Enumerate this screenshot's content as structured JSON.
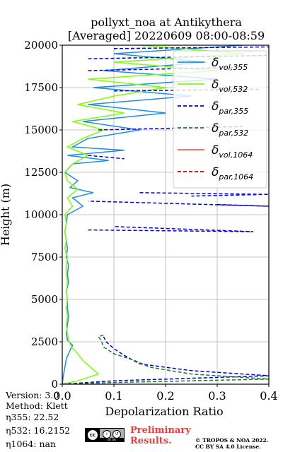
{
  "figure": {
    "title_line1": "pollyxt_noa at Antikythera",
    "title_line2": "[Averaged] 20220609 08:00-08:59"
  },
  "info": {
    "version": "Version: 3.0",
    "method": "Method: Klett",
    "eta355": "η355:  22.52",
    "eta532": "η532: 16.2152",
    "eta1064": "η1064:    nan"
  },
  "footer": {
    "preliminary_line1": "Preliminary",
    "preliminary_line2": "Results.",
    "copyright_line1": "© TROPOS & NOA 2022.",
    "copyright_line2": "CC BY SA 4.0 License.",
    "license_badge": "cc by sa"
  },
  "chart_data": {
    "type": "line",
    "title": "pollyxt_noa at Antikythera [Averaged] 20220609 08:00-08:59",
    "xlabel": "Depolarization Ratio",
    "ylabel": "Height (m)",
    "xlim": [
      0.0,
      0.4
    ],
    "ylim": [
      0,
      20000
    ],
    "xticks": [
      "0.0",
      "0.1",
      "0.2",
      "0.3",
      "0.4"
    ],
    "yticks": [
      "0",
      "2500",
      "5000",
      "7500",
      "10000",
      "12500",
      "15000",
      "17500",
      "20000"
    ],
    "grid": true,
    "legend_position": "top-right",
    "series": [
      {
        "name": "δvol,355",
        "color": "#1f8ce6",
        "style": "solid",
        "points": [
          [
            0.0,
            0
          ],
          [
            0.002,
            500
          ],
          [
            0.005,
            1000
          ],
          [
            0.008,
            1500
          ],
          [
            0.015,
            2000
          ],
          [
            0.02,
            2300
          ],
          [
            0.01,
            2600
          ],
          [
            0.008,
            3000
          ],
          [
            0.01,
            3500
          ],
          [
            0.012,
            4000
          ],
          [
            0.01,
            4500
          ],
          [
            0.01,
            5000
          ],
          [
            0.008,
            5500
          ],
          [
            0.012,
            6000
          ],
          [
            0.01,
            6500
          ],
          [
            0.012,
            7000
          ],
          [
            0.008,
            7500
          ],
          [
            0.01,
            8000
          ],
          [
            0.008,
            8500
          ],
          [
            0.005,
            9000
          ],
          [
            0.008,
            9500
          ],
          [
            0.01,
            10000
          ],
          [
            0.04,
            10500
          ],
          [
            0.02,
            11000
          ],
          [
            0.06,
            11300
          ],
          [
            0.015,
            11600
          ],
          [
            0.03,
            12000
          ],
          [
            0.005,
            12500
          ],
          [
            0.02,
            13000
          ],
          [
            0.09,
            13200
          ],
          [
            0.01,
            13500
          ],
          [
            0.12,
            13800
          ],
          [
            0.02,
            14000
          ],
          [
            0.05,
            14500
          ],
          [
            0.15,
            15000
          ],
          [
            0.04,
            15500
          ],
          [
            0.2,
            16000
          ],
          [
            0.05,
            16500
          ],
          [
            0.25,
            17000
          ],
          [
            0.06,
            17500
          ],
          [
            0.3,
            18000
          ],
          [
            0.08,
            18500
          ],
          [
            0.28,
            19000
          ],
          [
            0.1,
            19500
          ],
          [
            0.35,
            20000
          ]
        ]
      },
      {
        "name": "δvol,532",
        "color": "#7fff00",
        "style": "solid",
        "points": [
          [
            0.0,
            0
          ],
          [
            0.03,
            200
          ],
          [
            0.07,
            600
          ],
          [
            0.055,
            1000
          ],
          [
            0.04,
            1400
          ],
          [
            0.03,
            1800
          ],
          [
            0.018,
            2200
          ],
          [
            0.012,
            2600
          ],
          [
            0.01,
            3000
          ],
          [
            0.008,
            3500
          ],
          [
            0.01,
            4000
          ],
          [
            0.008,
            4500
          ],
          [
            0.01,
            5000
          ],
          [
            0.008,
            5500
          ],
          [
            0.01,
            6000
          ],
          [
            0.008,
            6500
          ],
          [
            0.008,
            7000
          ],
          [
            0.01,
            7500
          ],
          [
            0.005,
            8000
          ],
          [
            0.008,
            8500
          ],
          [
            0.005,
            9000
          ],
          [
            0.008,
            9500
          ],
          [
            0.005,
            10000
          ],
          [
            0.02,
            10500
          ],
          [
            0.01,
            11000
          ],
          [
            0.03,
            11500
          ],
          [
            0.01,
            12000
          ],
          [
            0.005,
            12500
          ],
          [
            0.02,
            13000
          ],
          [
            0.05,
            13500
          ],
          [
            0.01,
            14000
          ],
          [
            0.04,
            14500
          ],
          [
            0.08,
            15000
          ],
          [
            0.02,
            15500
          ],
          [
            0.12,
            16000
          ],
          [
            0.03,
            16500
          ],
          [
            0.1,
            17000
          ],
          [
            0.2,
            17500
          ],
          [
            0.05,
            18000
          ],
          [
            0.3,
            18500
          ],
          [
            0.1,
            19000
          ],
          [
            0.35,
            19500
          ],
          [
            0.15,
            20000
          ]
        ]
      },
      {
        "name": "δpar,355",
        "color": "#0000dd",
        "style": "dashed",
        "points": [
          [
            0.0,
            0
          ],
          [
            0.1,
            200
          ],
          [
            0.4,
            500
          ],
          [
            0.25,
            800
          ],
          [
            0.15,
            1200
          ],
          [
            0.12,
            1700
          ],
          [
            0.1,
            2100
          ],
          [
            0.085,
            2500
          ],
          [
            0.08,
            2800
          ],
          [
            null,
            null
          ],
          [
            0.05,
            9100
          ],
          [
            0.37,
            9000
          ],
          [
            0.1,
            9300
          ],
          [
            null,
            null
          ],
          [
            0.3,
            10600
          ],
          [
            0.4,
            10500
          ],
          [
            0.05,
            10800
          ],
          [
            null,
            null
          ],
          [
            0.15,
            11300
          ],
          [
            0.4,
            11200
          ],
          [
            0.25,
            11100
          ],
          [
            null,
            null
          ],
          [
            0.05,
            13500
          ],
          [
            0.12,
            13300
          ],
          [
            null,
            null
          ],
          [
            0.07,
            15000
          ],
          [
            0.35,
            15200
          ],
          [
            null,
            null
          ],
          [
            0.1,
            17300
          ],
          [
            0.38,
            17400
          ],
          [
            null,
            null
          ],
          [
            0.05,
            18500
          ],
          [
            0.35,
            18700
          ],
          [
            null,
            null
          ],
          [
            0.05,
            19200
          ],
          [
            0.4,
            19400
          ],
          [
            null,
            null
          ],
          [
            0.1,
            19800
          ],
          [
            0.4,
            19900
          ]
        ]
      },
      {
        "name": "δpar,532",
        "color": "#1a7a2a",
        "style": "dashed",
        "points": [
          [
            0.0,
            0
          ],
          [
            0.1,
            100
          ],
          [
            0.4,
            300
          ],
          [
            0.25,
            600
          ],
          [
            0.17,
            1000
          ],
          [
            0.14,
            1400
          ],
          [
            0.1,
            1800
          ],
          [
            0.08,
            2200
          ],
          [
            0.075,
            2600
          ],
          [
            0.07,
            2800
          ],
          [
            0.08,
            2900
          ]
        ]
      },
      {
        "name": "δvol,1064",
        "color": "#ff6347",
        "style": "solid",
        "points": []
      },
      {
        "name": "δpar,1064",
        "color": "#dd0000",
        "style": "dashed",
        "points": []
      }
    ]
  }
}
